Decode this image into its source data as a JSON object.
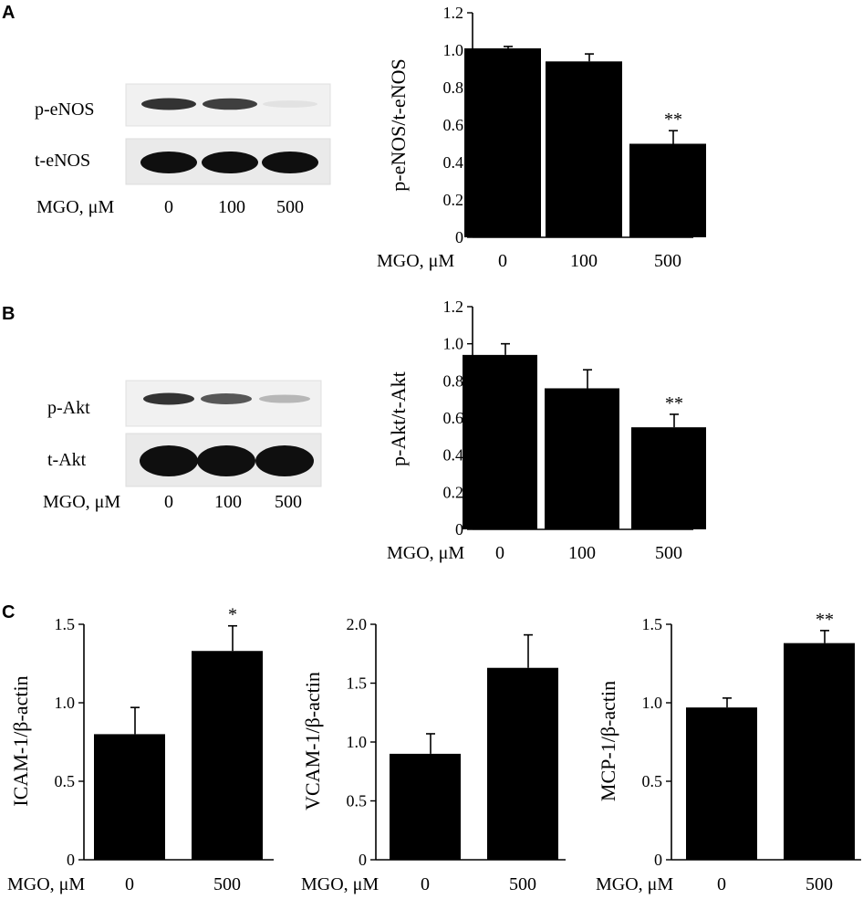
{
  "panels": {
    "A": {
      "letter": "A",
      "blot": {
        "rows": [
          {
            "label": "p-eNOS",
            "intensities": [
              0.85,
              0.8,
              0.12
            ]
          },
          {
            "label": "t-eNOS",
            "intensities": [
              1.0,
              1.0,
              1.0
            ]
          }
        ],
        "x_label": "MGO, μM",
        "lanes": [
          "0",
          "100",
          "500"
        ]
      }
    },
    "B": {
      "letter": "B",
      "blot": {
        "rows": [
          {
            "label": "p-Akt",
            "intensities": [
              0.85,
              0.7,
              0.3
            ]
          },
          {
            "label": "t-Akt",
            "intensities": [
              1.0,
              1.0,
              1.0
            ]
          }
        ],
        "x_label": "MGO, μM",
        "lanes": [
          "0",
          "100",
          "500"
        ]
      }
    },
    "C": {
      "letter": "C"
    }
  },
  "chart_data": [
    {
      "id": "A-chart",
      "type": "bar",
      "categories": [
        "0",
        "100",
        "500"
      ],
      "values": [
        1.01,
        0.94,
        0.5
      ],
      "errors": [
        0.01,
        0.04,
        0.07
      ],
      "significance": [
        "",
        "",
        "**"
      ],
      "ylabel": "p-eNOS/t-eNOS",
      "xlabel": "MGO, μM",
      "ylim": [
        0,
        1.2
      ],
      "yticks": [
        "0",
        "0.2",
        "0.4",
        "0.6",
        "0.8",
        "1.0",
        "1.2"
      ],
      "grid": false
    },
    {
      "id": "B-chart",
      "type": "bar",
      "categories": [
        "0",
        "100",
        "500"
      ],
      "values": [
        0.94,
        0.76,
        0.55
      ],
      "errors": [
        0.06,
        0.1,
        0.07
      ],
      "significance": [
        "",
        "",
        "**"
      ],
      "ylabel": "p-Akt/t-Akt",
      "xlabel": "MGO, μM",
      "ylim": [
        0,
        1.2
      ],
      "yticks": [
        "0",
        "0.2",
        "0.4",
        "0.6",
        "0.8",
        "1.0",
        "1.2"
      ],
      "grid": false
    },
    {
      "id": "C1-chart",
      "type": "bar",
      "categories": [
        "0",
        "500"
      ],
      "values": [
        0.8,
        1.33
      ],
      "errors": [
        0.17,
        0.16
      ],
      "significance": [
        "",
        "*"
      ],
      "ylabel": "ICAM-1/β-actin",
      "xlabel": "MGO, μM",
      "ylim": [
        0,
        1.8
      ],
      "yticks": [
        "0",
        "0.5",
        "1.0",
        "1.5"
      ],
      "grid": false
    },
    {
      "id": "C2-chart",
      "type": "bar",
      "categories": [
        "0",
        "500"
      ],
      "values": [
        0.9,
        1.63
      ],
      "errors": [
        0.17,
        0.28
      ],
      "significance": [
        "",
        ""
      ],
      "ylabel": "VCAM-1/β-actin",
      "xlabel": "MGO, μM",
      "ylim": [
        0,
        2.0
      ],
      "yticks": [
        "0",
        "0.5",
        "1.0",
        "1.5",
        "2.0"
      ],
      "grid": false
    },
    {
      "id": "C3-chart",
      "type": "bar",
      "categories": [
        "0",
        "500"
      ],
      "values": [
        0.97,
        1.38
      ],
      "errors": [
        0.06,
        0.08
      ],
      "significance": [
        "",
        "**"
      ],
      "ylabel": "MCP-1/β-actin",
      "xlabel": "MGO, μM",
      "ylim": [
        0,
        1.5
      ],
      "yticks": [
        "0",
        "0.5",
        "1.0",
        "1.5"
      ],
      "grid": false
    }
  ]
}
